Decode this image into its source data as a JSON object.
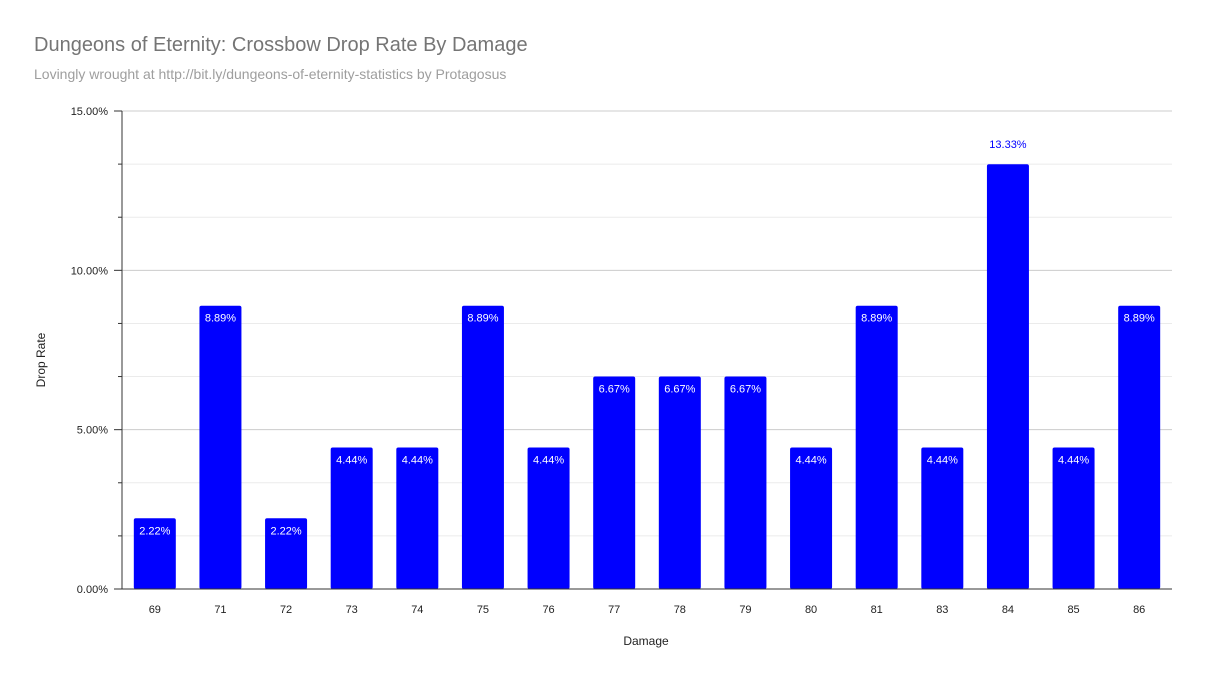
{
  "chart_data": {
    "type": "bar",
    "title": "Dungeons of Eternity: Crossbow Drop Rate By Damage",
    "subtitle": "Lovingly wrought at http://bit.ly/dungeons-of-eternity-statistics by Protagosus",
    "xlabel": "Damage",
    "ylabel": "Drop Rate",
    "categories": [
      "69",
      "71",
      "72",
      "73",
      "74",
      "75",
      "76",
      "77",
      "78",
      "79",
      "80",
      "81",
      "83",
      "84",
      "85",
      "86"
    ],
    "values": [
      2.22,
      8.89,
      2.22,
      4.44,
      4.44,
      8.89,
      4.44,
      6.67,
      6.67,
      6.67,
      4.44,
      8.89,
      4.44,
      13.33,
      4.44,
      8.89
    ],
    "value_labels": [
      "2.22%",
      "8.89%",
      "2.22%",
      "4.44%",
      "4.44%",
      "8.89%",
      "4.44%",
      "6.67%",
      "6.67%",
      "6.67%",
      "4.44%",
      "8.89%",
      "4.44%",
      "13.33%",
      "4.44%",
      "8.89%"
    ],
    "y_ticks": [
      0,
      5,
      10,
      15
    ],
    "y_tick_labels": [
      "0.00%",
      "5.00%",
      "10.00%",
      "15.00%"
    ],
    "ylim": [
      0,
      15
    ],
    "grid": true,
    "legend": "none",
    "colors": {
      "bar": "#0000ff",
      "label_inside": "#ffffff",
      "label_outside": "#0000ff",
      "grid_major": "#cccccc",
      "grid_minor": "#ebebeb"
    }
  }
}
